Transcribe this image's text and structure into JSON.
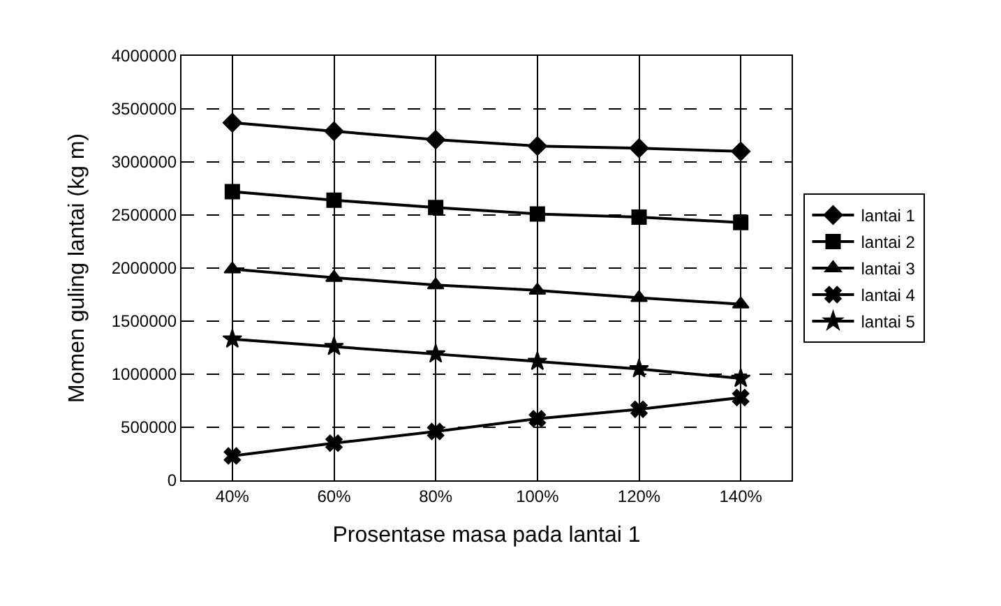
{
  "chart_data": {
    "type": "line",
    "xlabel": "Prosentase masa pada lantai 1",
    "ylabel": "Momen guling lantai (kg m)",
    "categories": [
      "40%",
      "60%",
      "80%",
      "100%",
      "120%",
      "140%"
    ],
    "series": [
      {
        "name": "lantai 1",
        "color": "#000000",
        "marker": "diamond",
        "values": [
          3370000,
          3290000,
          3210000,
          3150000,
          3130000,
          3100000
        ]
      },
      {
        "name": "lantai 2",
        "color": "#000000",
        "marker": "square",
        "values": [
          2720000,
          2640000,
          2570000,
          2510000,
          2480000,
          2430000
        ]
      },
      {
        "name": "lantai 3",
        "color": "#000000",
        "marker": "triangle",
        "values": [
          1990000,
          1910000,
          1840000,
          1790000,
          1720000,
          1660000
        ]
      },
      {
        "name": "lantai 4",
        "color": "#000000",
        "marker": "cross",
        "values": [
          230000,
          350000,
          460000,
          580000,
          670000,
          780000
        ]
      },
      {
        "name": "lantai 5",
        "color": "#000000",
        "marker": "star",
        "values": [
          1330000,
          1260000,
          1190000,
          1120000,
          1050000,
          960000
        ]
      }
    ],
    "ylim": [
      0,
      4000000
    ],
    "yticks": [
      0,
      500000,
      1000000,
      1500000,
      2000000,
      2500000,
      3000000,
      3500000,
      4000000
    ],
    "grid": true,
    "legend": "right",
    "line_style": "solid"
  }
}
